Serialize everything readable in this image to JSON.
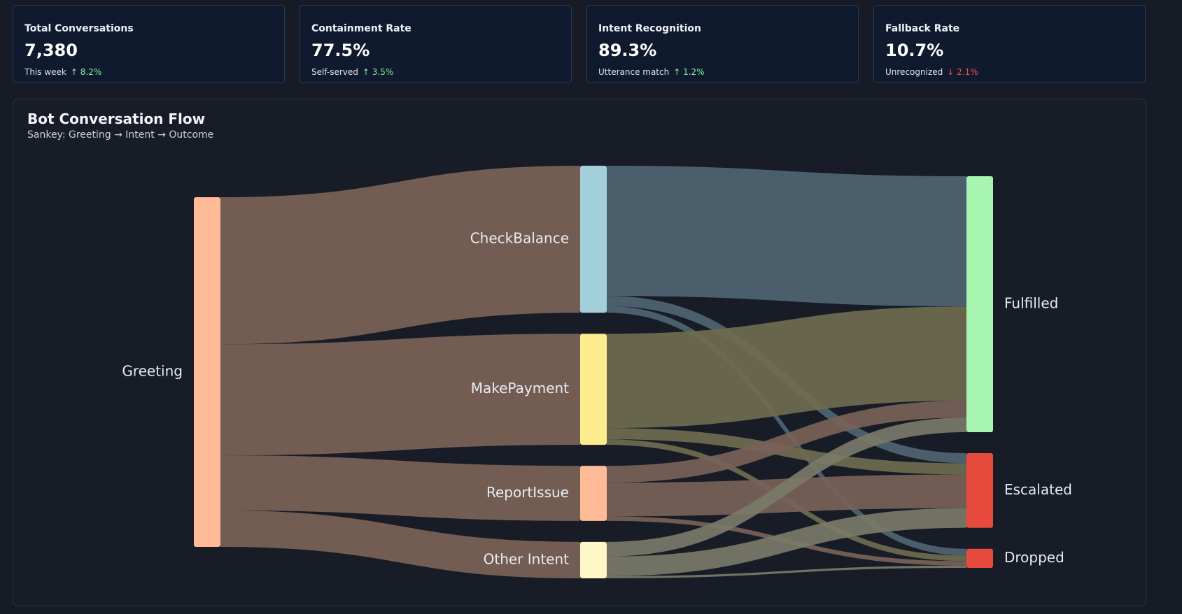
{
  "kpis": [
    {
      "title": "Total Conversations",
      "value": "7,380",
      "sub": "This week",
      "delta": "↑ 8.2%",
      "trend": "up"
    },
    {
      "title": "Containment Rate",
      "value": "77.5%",
      "sub": "Self-served",
      "delta": "↑ 3.5%",
      "trend": "up"
    },
    {
      "title": "Intent Recognition",
      "value": "89.3%",
      "sub": "Utterance match",
      "delta": "↑ 1.2%",
      "trend": "up"
    },
    {
      "title": "Fallback Rate",
      "value": "10.7%",
      "sub": "Unrecognized",
      "delta": "↓ 2.1%",
      "trend": "down"
    }
  ],
  "panel": {
    "title": "Bot Conversation Flow",
    "subtitle": "Sankey: Greeting → Intent → Outcome"
  },
  "colors": {
    "up": "#7ef29d",
    "down": "#f0524a"
  },
  "chart_data": {
    "type": "sankey",
    "nodes": [
      {
        "id": "greeting",
        "label": "Greeting",
        "color": "#ffbb98"
      },
      {
        "id": "check_balance",
        "label": "CheckBalance",
        "color": "#a2cfda"
      },
      {
        "id": "make_payment",
        "label": "MakePayment",
        "color": "#fdec8e"
      },
      {
        "id": "report_issue",
        "label": "ReportIssue",
        "color": "#ffbb98"
      },
      {
        "id": "other_intent",
        "label": "Other Intent",
        "color": "#fdf6c6"
      },
      {
        "id": "fulfilled",
        "label": "Fulfilled",
        "color": "#a8f5b1"
      },
      {
        "id": "escalated",
        "label": "Escalated",
        "color": "#e64b3d"
      },
      {
        "id": "dropped",
        "label": "Dropped",
        "color": "#e64b3d"
      }
    ],
    "links": [
      {
        "source": "greeting",
        "target": "check_balance",
        "value": 2620
      },
      {
        "source": "greeting",
        "target": "make_payment",
        "value": 1980
      },
      {
        "source": "greeting",
        "target": "report_issue",
        "value": 980
      },
      {
        "source": "greeting",
        "target": "other_intent",
        "value": 650
      },
      {
        "source": "check_balance",
        "target": "fulfilled",
        "value": 2320
      },
      {
        "source": "check_balance",
        "target": "escalated",
        "value": 180
      },
      {
        "source": "check_balance",
        "target": "dropped",
        "value": 120
      },
      {
        "source": "make_payment",
        "target": "fulfilled",
        "value": 1680
      },
      {
        "source": "make_payment",
        "target": "escalated",
        "value": 200
      },
      {
        "source": "make_payment",
        "target": "dropped",
        "value": 100
      },
      {
        "source": "report_issue",
        "target": "fulfilled",
        "value": 300
      },
      {
        "source": "report_issue",
        "target": "escalated",
        "value": 600
      },
      {
        "source": "report_issue",
        "target": "dropped",
        "value": 80
      },
      {
        "source": "other_intent",
        "target": "fulfilled",
        "value": 260
      },
      {
        "source": "other_intent",
        "target": "escalated",
        "value": 350
      },
      {
        "source": "other_intent",
        "target": "dropped",
        "value": 40
      }
    ]
  }
}
